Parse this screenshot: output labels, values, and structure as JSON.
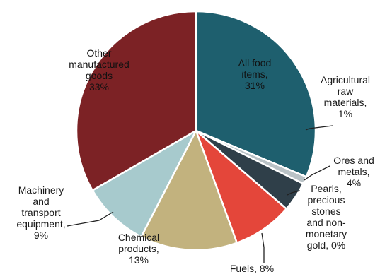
{
  "chart_data": {
    "type": "pie",
    "title": "",
    "slices": [
      {
        "label_lines": [
          "All food",
          "items,",
          "31%"
        ],
        "value": 31,
        "color": "#1e5f6e"
      },
      {
        "label_lines": [
          "Agricultural",
          "raw",
          "materials,",
          "1%"
        ],
        "value": 1,
        "color": "#b9c2c6"
      },
      {
        "label_lines": [
          "Ores and",
          "metals,",
          "4%"
        ],
        "value": 4,
        "color": "#2f3f49"
      },
      {
        "label_lines": [
          "Pearls,",
          "precious",
          "stones",
          "and non-",
          "monetary",
          "gold, 0%"
        ],
        "value": 0,
        "color": "#2f3f49"
      },
      {
        "label_lines": [
          "Fuels, 8%"
        ],
        "value": 8,
        "color": "#e4463a"
      },
      {
        "label_lines": [
          "Chemical",
          "products,",
          "13%"
        ],
        "value": 13,
        "color": "#c2b27e"
      },
      {
        "label_lines": [
          "Machinery",
          "and",
          "transport",
          "equipment,",
          "9%"
        ],
        "value": 9,
        "color": "#a7cacd"
      },
      {
        "label_lines": [
          "Other",
          "manufactured",
          "goods",
          "33%"
        ],
        "value": 33,
        "color": "#7c2225"
      }
    ]
  }
}
